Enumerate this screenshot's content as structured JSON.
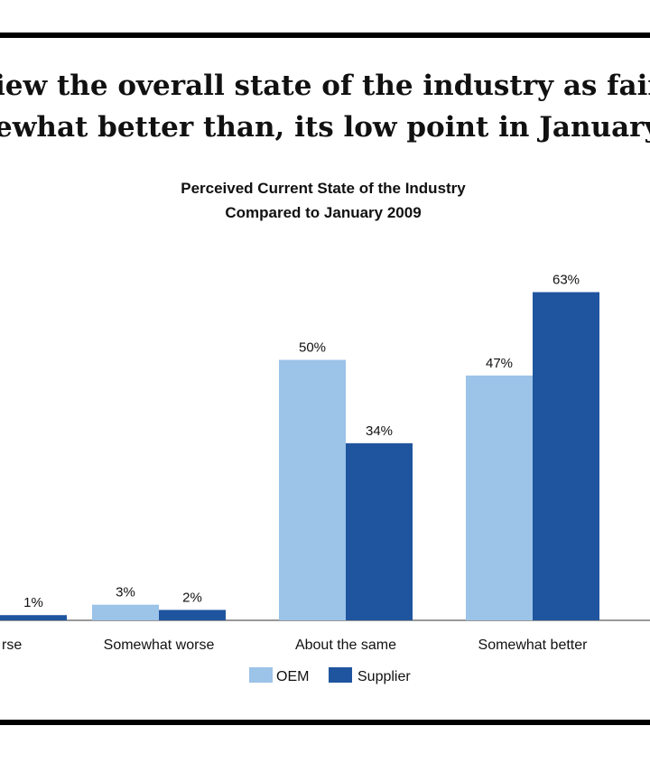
{
  "headline": {
    "line1": "iew the overall state of the industry as fair",
    "line2": "ewhat better than, its low point in January"
  },
  "colors": {
    "oem": "#9cc3e8",
    "supplier": "#1f559f"
  },
  "chart_data": {
    "type": "bar",
    "title": "Perceived Current State of the Industry",
    "subtitle": "Compared to January 2009",
    "categories": [
      "rse",
      "Somewhat worse",
      "About the same",
      "Somewhat better"
    ],
    "series": [
      {
        "name": "OEM",
        "values": [
          0,
          3,
          50,
          47
        ],
        "labels": [
          "",
          "3%",
          "50%",
          "47%"
        ]
      },
      {
        "name": "Supplier",
        "values": [
          1,
          2,
          34,
          63
        ],
        "labels": [
          "1%",
          "2%",
          "34%",
          "63%"
        ]
      }
    ],
    "ylim": [
      0,
      65
    ],
    "xlabel": "",
    "ylabel": "",
    "legend": "bottom-center",
    "grid": false
  }
}
